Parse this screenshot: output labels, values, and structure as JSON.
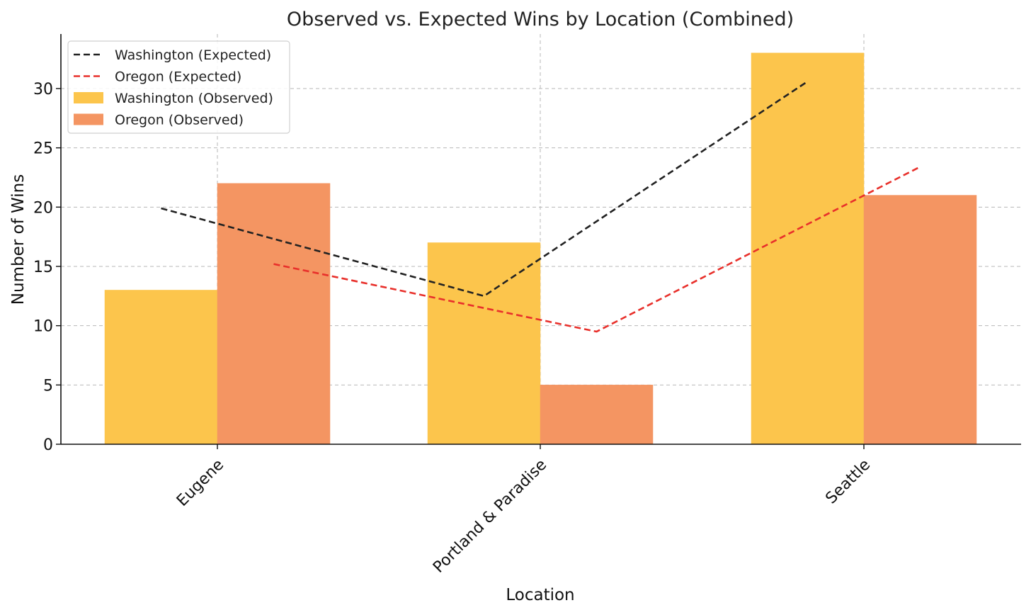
{
  "chart_data": {
    "type": "bar",
    "title": "Observed vs. Expected Wins by Location (Combined)",
    "xlabel": "Location",
    "ylabel": "Number of Wins",
    "categories": [
      "Eugene",
      "Portland & Paradise",
      "Seattle"
    ],
    "ylim": [
      0,
      34.6
    ],
    "yticks": [
      0,
      5,
      10,
      15,
      20,
      25,
      30
    ],
    "grid": true,
    "legend_position": "top-left",
    "series": [
      {
        "name": "Washington (Observed)",
        "kind": "bar",
        "color": "#fcc54c",
        "values": [
          13,
          17,
          33
        ]
      },
      {
        "name": "Oregon (Observed)",
        "kind": "bar",
        "color": "#f49562",
        "values": [
          22,
          5,
          21
        ]
      },
      {
        "name": "Washington (Expected)",
        "kind": "line",
        "style": "dashed",
        "color": "#222222",
        "values": [
          19.9,
          12.5,
          30.6
        ]
      },
      {
        "name": "Oregon (Expected)",
        "kind": "line",
        "style": "dashed",
        "color": "#e8302b",
        "values": [
          15.2,
          9.5,
          23.4
        ]
      }
    ],
    "legend_order": [
      "Washington (Expected)",
      "Oregon (Expected)",
      "Washington (Observed)",
      "Oregon (Observed)"
    ]
  }
}
